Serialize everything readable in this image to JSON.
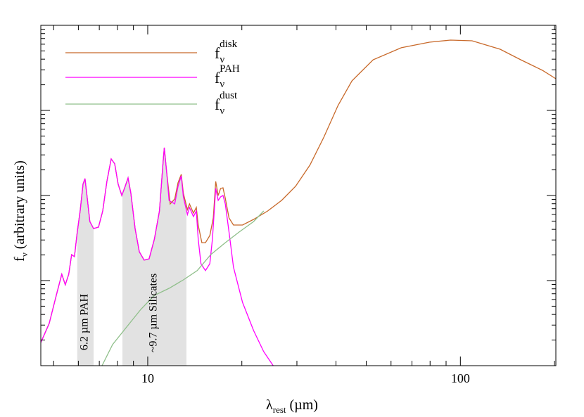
{
  "chart_data": {
    "type": "line",
    "x_label": {
      "main": "λ",
      "sub": "rest",
      "rest": " (µm)"
    },
    "y_label": {
      "main": "f",
      "sub": "ν",
      "rest": " (arbitrary units)"
    },
    "legend_symbol": "f",
    "legend_subscript": "ν",
    "legend": "upper left",
    "xscale": "log",
    "yscale": "log",
    "xlim": [
      4.55,
      202
    ],
    "xticks": [
      10,
      100
    ],
    "xminor_ticks": [
      5,
      6,
      7,
      8,
      9,
      20,
      30,
      40,
      50,
      60,
      70,
      80,
      90,
      200
    ],
    "ylim": [
      1,
      10000
    ],
    "yticks": [
      10,
      100,
      1000
    ],
    "yminor_ticks": [
      2,
      3,
      4,
      5,
      6,
      7,
      8,
      9,
      20,
      30,
      40,
      50,
      60,
      70,
      80,
      90,
      200,
      300,
      400,
      500,
      600,
      700,
      800,
      900,
      2000,
      3000,
      4000,
      5000,
      6000,
      7000,
      8000,
      9000
    ],
    "bands": [
      {
        "label": "6.2 µm PAH",
        "x": [
          5.95,
          6.71
        ]
      },
      {
        "label": "~9.7 µm Silicates",
        "x": [
          8.3,
          13.3
        ]
      }
    ],
    "series": [
      {
        "name": "disk",
        "color": "#c8692a",
        "x": [
          4.55,
          4.84,
          5.1,
          5.31,
          5.45,
          5.59,
          5.71,
          5.83,
          5.95,
          6.08,
          6.21,
          6.3,
          6.4,
          6.53,
          6.71,
          6.96,
          7.18,
          7.4,
          7.64,
          7.84,
          8.04,
          8.26,
          8.47,
          8.65,
          8.83,
          9.11,
          9.4,
          9.74,
          10.1,
          10.5,
          10.9,
          11.2,
          11.3,
          11.5,
          11.8,
          12.2,
          12.5,
          12.8,
          13.0,
          13.4,
          13.6,
          14.0,
          14.3,
          14.5,
          14.9,
          15.3,
          15.8,
          16.2,
          16.5,
          16.8,
          17.1,
          17.4,
          17.7,
          18.2,
          18.8,
          20.1,
          21.8,
          24.2,
          26.8,
          29.7,
          33.0,
          36.6,
          40.6,
          45.0,
          52.6,
          64.7,
          79.6,
          93.0,
          109,
          134,
          156,
          183,
          202
        ],
        "values": [
          1.87,
          3.13,
          6.7,
          11.9,
          8.92,
          11.9,
          20.2,
          19.1,
          37.2,
          65.8,
          136,
          158,
          96.2,
          49.4,
          40.9,
          42.5,
          65.8,
          146,
          269,
          236,
          136,
          100,
          128,
          161,
          106,
          40.9,
          21.8,
          17.4,
          18.0,
          30.7,
          65.8,
          249,
          365,
          187,
          79.6,
          91.0,
          141,
          177,
          106,
          68.4,
          79.6,
          62.1,
          72.4,
          45.0,
          27.9,
          27.9,
          33.8,
          54.4,
          146,
          100,
          121,
          123,
          92.7,
          54.4,
          45.0,
          45.0,
          52.4,
          65.8,
          87.5,
          128,
          227,
          485,
          1142,
          2224,
          3935,
          5445,
          6339,
          6703,
          6578,
          5236,
          3935,
          2958,
          2354
        ]
      },
      {
        "name": "PAH",
        "color": "#ff00ff",
        "x": [
          4.55,
          4.84,
          5.1,
          5.31,
          5.45,
          5.59,
          5.71,
          5.83,
          5.95,
          6.08,
          6.21,
          6.3,
          6.4,
          6.53,
          6.71,
          6.96,
          7.18,
          7.4,
          7.64,
          7.84,
          8.04,
          8.26,
          8.47,
          8.65,
          8.83,
          9.11,
          9.4,
          9.74,
          10.1,
          10.5,
          10.9,
          11.2,
          11.3,
          11.5,
          11.7,
          12.2,
          12.5,
          12.8,
          13.0,
          13.4,
          13.6,
          14.0,
          14.3,
          14.5,
          14.8,
          15.3,
          15.8,
          16.1,
          16.5,
          16.8,
          17.1,
          17.4,
          17.7,
          18.2,
          18.8,
          20.1,
          21.8,
          23.5,
          25.2
        ],
        "values": [
          1.87,
          3.13,
          6.7,
          11.9,
          8.92,
          11.9,
          20.2,
          19.1,
          37.2,
          65.8,
          136,
          158,
          96.2,
          49.4,
          40.9,
          42.5,
          65.8,
          146,
          269,
          236,
          136,
          100,
          128,
          161,
          106,
          40.9,
          21.8,
          17.4,
          18.0,
          30.7,
          65.8,
          249,
          365,
          187,
          87.5,
          79.6,
          128,
          170,
          96.2,
          59.8,
          72.4,
          56.5,
          65.8,
          30.7,
          15.8,
          13.1,
          15.8,
          30.7,
          121,
          87.5,
          96.2,
          100,
          79.6,
          37.2,
          14.4,
          5.54,
          2.59,
          1.46,
          1.0
        ]
      },
      {
        "name": "dust",
        "color": "#8fbf8a",
        "x": [
          7.14,
          7.72,
          8.56,
          9.5,
          10.5,
          11.7,
          13.0,
          14.4,
          15.9,
          17.7,
          19.6,
          21.8,
          23.5
        ],
        "values": [
          1.0,
          1.77,
          2.85,
          4.58,
          6.7,
          8.11,
          10.2,
          13.1,
          20.2,
          27.9,
          37.2,
          49.4,
          65.8
        ]
      }
    ]
  }
}
